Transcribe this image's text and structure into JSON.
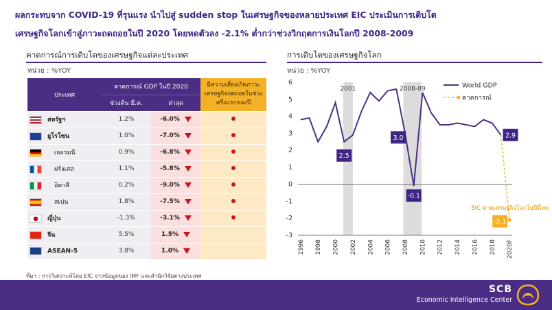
{
  "headline": {
    "line1": "ผลกระทบจาก COVID-19 ที่รุนแรง นำไปสู่ sudden stop ในเศรษฐกิจของหลายประเทศ  EIC ประเมินการเติบโต",
    "line2": "เศรษฐกิจโลกเข้าสู่ภาวะถดถอยในปี 2020 โดยหดตัวลง -2.1% ต่ำกว่าช่วงวิกฤตการเงินโลกปี 2008-2009"
  },
  "left_panel": {
    "title": "คาดการณ์การเติบโตของเศรษฐกิจแต่ละประเทศ",
    "unit": "หน่วย : %YOY",
    "headers": {
      "country": "ประเทศ",
      "gdp_forecast": "คาดการณ์ GDP ในปี 2020",
      "begin": "ช่วงต้น มี.ค.",
      "latest": "ล่าสุด",
      "risk": "มีความเสี่ยงเกิดภาวะเศรษฐกิจถดถอยในช่วงครึ่งแรกของปี"
    },
    "rows": [
      {
        "flag": "us-flag",
        "name": "สหรัฐฯ",
        "begin": "1.2%",
        "latest": "-6.0%",
        "down": true,
        "risk": true
      },
      {
        "flag": "eu-flag",
        "name": "ยูโรโซน",
        "begin": "1.0%",
        "latest": "-7.0%",
        "down": true,
        "risk": true
      },
      {
        "flag": "de-flag",
        "name": "เยอรมนี",
        "begin": "0.9%",
        "latest": "-6.8%",
        "down": true,
        "risk": true
      },
      {
        "flag": "fr-flag",
        "name": "ฝรั่งเศส",
        "begin": "1.1%",
        "latest": "-5.8%",
        "down": true,
        "risk": true
      },
      {
        "flag": "it-flag",
        "name": "อิตาลี",
        "begin": "0.2%",
        "latest": "-9.0%",
        "down": true,
        "risk": true
      },
      {
        "flag": "es-flag",
        "name": "สเปน",
        "begin": "1.8%",
        "latest": "-7.5%",
        "down": true,
        "risk": true
      },
      {
        "flag": "jp-flag",
        "name": "ญี่ปุ่น",
        "begin": "-1.3%",
        "latest": "-3.1%",
        "down": true,
        "risk": true
      },
      {
        "flag": "cn-flag",
        "name": "จีน",
        "begin": "5.5%",
        "latest": "1.5%",
        "down": true,
        "risk": false
      },
      {
        "flag": "asean-flag",
        "name": "ASEAN-5",
        "begin": "3.8%",
        "latest": "1.0%",
        "down": true,
        "risk": false
      }
    ]
  },
  "right_panel": {
    "title": "การเติบโตของเศรษฐกิจโลก",
    "unit": "หน่วย : %YOY"
  },
  "chart_data": {
    "type": "line",
    "x": [
      1996,
      1997,
      1998,
      1999,
      2000,
      2001,
      2002,
      2003,
      2004,
      2005,
      2006,
      2007,
      2008,
      2009,
      2010,
      2011,
      2012,
      2013,
      2014,
      2015,
      2016,
      2017,
      2018,
      2019,
      2020
    ],
    "x_tick_labels": [
      "1996",
      "1998",
      "2000",
      "2002",
      "2004",
      "2006",
      "2008",
      "2010",
      "2012",
      "2014",
      "2016",
      "2018",
      "2020F"
    ],
    "series": [
      {
        "name": "World GDP",
        "values": [
          3.8,
          3.9,
          2.5,
          3.4,
          4.8,
          2.5,
          2.9,
          4.3,
          5.4,
          4.9,
          5.5,
          5.6,
          3.0,
          -0.1,
          5.4,
          4.2,
          3.5,
          3.5,
          3.6,
          3.5,
          3.4,
          3.8,
          3.6,
          2.9,
          null
        ],
        "color": "#4b2e83"
      },
      {
        "name": "คาดการณ์",
        "values": [
          null,
          null,
          null,
          null,
          null,
          null,
          null,
          null,
          null,
          null,
          null,
          null,
          null,
          null,
          null,
          null,
          null,
          null,
          null,
          null,
          null,
          null,
          null,
          2.9,
          -2.1
        ],
        "color": "#f4b127",
        "dashed": true
      }
    ],
    "ylim": [
      -3,
      6
    ],
    "yticks": [
      -3,
      -2,
      -1,
      0,
      1,
      2,
      3,
      4,
      5,
      6
    ],
    "shaded_periods": [
      {
        "label": "2001",
        "from": 2000.9,
        "to": 2002
      },
      {
        "label": "2008-09",
        "from": 2007.8,
        "to": 2009.9
      }
    ],
    "data_labels": [
      {
        "x": 2001,
        "y": 2.5,
        "text": "2.5"
      },
      {
        "x": 2008,
        "y": 3.0,
        "text": "3.0"
      },
      {
        "x": 2009,
        "y": -0.1,
        "text": "-0.1"
      },
      {
        "x": 2019,
        "y": 2.9,
        "text": "2.9"
      },
      {
        "x": 2020,
        "y": -2.1,
        "text": "-2.1"
      }
    ],
    "annotation": "EIC คาดเศรษฐกิจโลกในปีนี้หดตัวที่",
    "legend": "top-right",
    "grid": false
  },
  "source": "ที่มา : การวิเคราะห์โดย EIC จากข้อมูลของ IMF และสำนักวิจัยต่างประเทศ",
  "footer": {
    "brand": "SCB",
    "subtitle": "Economic Intelligence Center"
  },
  "colors": {
    "purple": "#4b2e83",
    "orange": "#f4b127",
    "red": "#c8141e",
    "pink": "#fbdede",
    "cream": "#fde9c4"
  }
}
